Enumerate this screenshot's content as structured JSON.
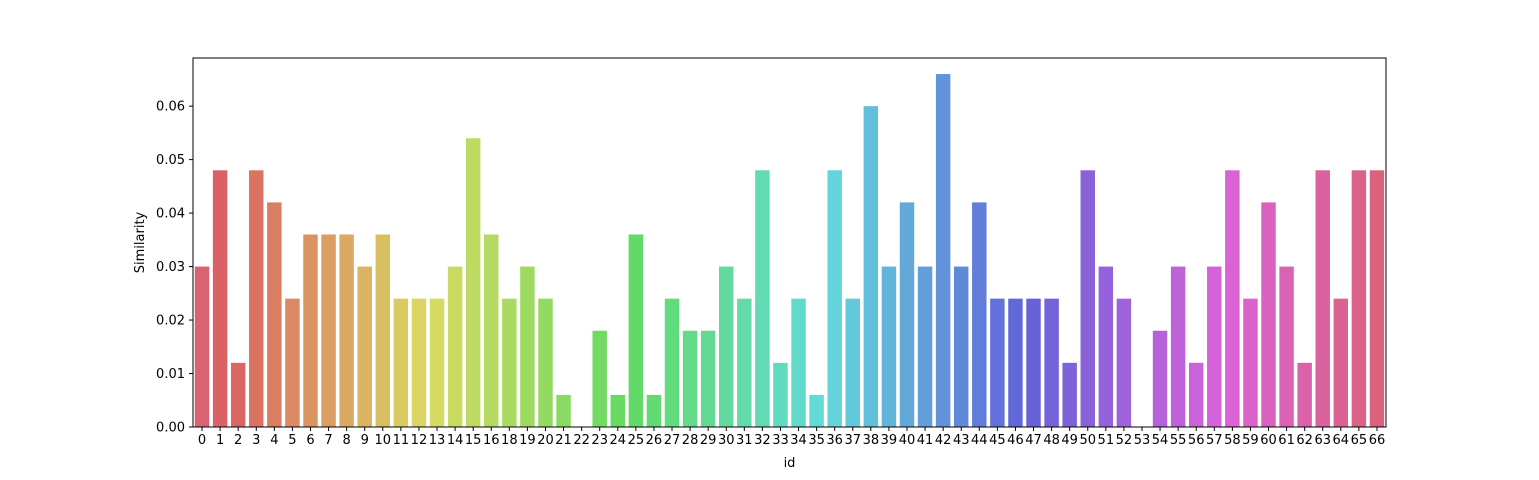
{
  "chart_data": {
    "type": "bar",
    "title": "",
    "xlabel": "id",
    "ylabel": "Similarity",
    "ylim": [
      0,
      0.069
    ],
    "yticks": [
      "0.00",
      "0.01",
      "0.02",
      "0.03",
      "0.04",
      "0.05",
      "0.06"
    ],
    "categories": [
      "0",
      "1",
      "2",
      "3",
      "4",
      "5",
      "6",
      "7",
      "8",
      "9",
      "10",
      "11",
      "12",
      "13",
      "14",
      "15",
      "16",
      "18",
      "19",
      "20",
      "21",
      "22",
      "23",
      "24",
      "25",
      "26",
      "27",
      "28",
      "29",
      "30",
      "31",
      "32",
      "33",
      "34",
      "35",
      "36",
      "37",
      "38",
      "39",
      "40",
      "41",
      "42",
      "43",
      "44",
      "45",
      "46",
      "47",
      "48",
      "49",
      "50",
      "51",
      "52",
      "53",
      "54",
      "55",
      "56",
      "57",
      "58",
      "59",
      "60",
      "61",
      "62",
      "63",
      "64",
      "65",
      "66"
    ],
    "values": [
      0.03,
      0.048,
      0.012,
      0.048,
      0.042,
      0.024,
      0.036,
      0.036,
      0.036,
      0.03,
      0.036,
      0.024,
      0.024,
      0.024,
      0.03,
      0.054,
      0.036,
      0.024,
      0.03,
      0.024,
      0.006,
      0.0,
      0.018,
      0.006,
      0.036,
      0.006,
      0.024,
      0.018,
      0.018,
      0.03,
      0.024,
      0.048,
      0.012,
      0.024,
      0.006,
      0.048,
      0.024,
      0.06,
      0.03,
      0.042,
      0.03,
      0.066,
      0.03,
      0.042,
      0.024,
      0.024,
      0.024,
      0.024,
      0.012,
      0.048,
      0.03,
      0.024,
      0.0,
      0.018,
      0.03,
      0.012,
      0.03,
      0.048,
      0.024,
      0.042,
      0.03,
      0.012,
      0.048,
      0.024,
      0.048,
      0.048
    ],
    "grid": false,
    "legend": "none"
  }
}
